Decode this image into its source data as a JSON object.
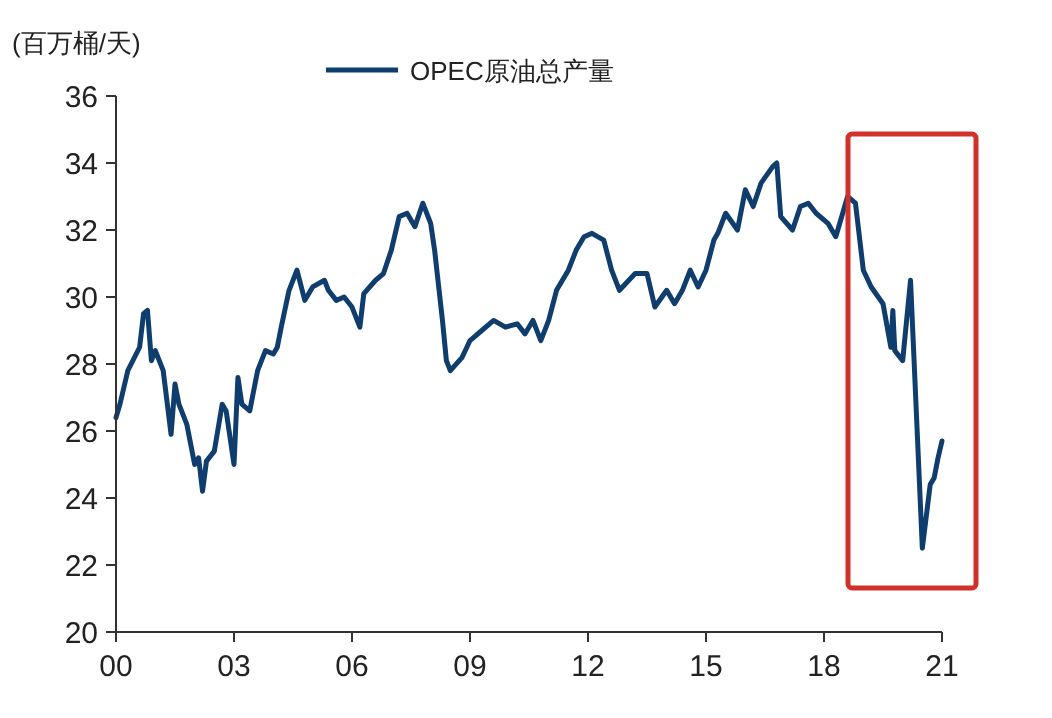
{
  "chart_data": {
    "type": "line",
    "ylabel": "(百万桶/天)",
    "legend": "top",
    "grid": false,
    "xlim": [
      0,
      21
    ],
    "xticks": [
      {
        "value": 0,
        "label": "00"
      },
      {
        "value": 3,
        "label": "03"
      },
      {
        "value": 6,
        "label": "06"
      },
      {
        "value": 9,
        "label": "09"
      },
      {
        "value": 12,
        "label": "12"
      },
      {
        "value": 15,
        "label": "15"
      },
      {
        "value": 18,
        "label": "18"
      },
      {
        "value": 21,
        "label": "21"
      }
    ],
    "ylim": [
      20,
      36
    ],
    "yticks": [
      20,
      22,
      24,
      26,
      28,
      30,
      32,
      34,
      36
    ],
    "series": [
      {
        "name": "OPEC原油总产量",
        "color": "#0f3d6e",
        "x": [
          0,
          0.1,
          0.3,
          0.6,
          0.7,
          0.8,
          0.9,
          1.0,
          1.2,
          1.4,
          1.5,
          1.6,
          1.8,
          2.0,
          2.1,
          2.2,
          2.3,
          2.5,
          2.7,
          2.8,
          3.0,
          3.1,
          3.2,
          3.4,
          3.6,
          3.8,
          4.0,
          4.1,
          4.2,
          4.4,
          4.6,
          4.8,
          5.0,
          5.3,
          5.4,
          5.6,
          5.8,
          6.0,
          6.2,
          6.3,
          6.6,
          6.8,
          7.0,
          7.2,
          7.4,
          7.6,
          7.8,
          8.0,
          8.1,
          8.3,
          8.4,
          8.5,
          8.8,
          9.0,
          9.3,
          9.6,
          9.9,
          10.2,
          10.4,
          10.6,
          10.8,
          11.0,
          11.2,
          11.5,
          11.7,
          11.9,
          12.1,
          12.4,
          12.6,
          12.8,
          13.2,
          13.5,
          13.7,
          14.0,
          14.2,
          14.4,
          14.6,
          14.8,
          15.0,
          15.2,
          15.3,
          15.5,
          15.8,
          16.0,
          16.2,
          16.4,
          16.7,
          16.8,
          16.9,
          17.2,
          17.4,
          17.6,
          17.8,
          18.1,
          18.3,
          18.6,
          18.8,
          19.0,
          19.2,
          19.5,
          19.7,
          19.75,
          19.8,
          20.0,
          20.2,
          20.5,
          20.7,
          20.8,
          20.9,
          21.0
        ],
        "values": [
          26.4,
          26.8,
          27.8,
          28.5,
          29.5,
          29.6,
          28.1,
          28.4,
          27.8,
          25.9,
          27.4,
          26.8,
          26.2,
          25.0,
          25.2,
          24.2,
          25.1,
          25.4,
          26.8,
          26.6,
          25.0,
          27.6,
          26.8,
          26.6,
          27.8,
          28.4,
          28.3,
          28.5,
          29.1,
          30.2,
          30.8,
          29.9,
          30.3,
          30.5,
          30.2,
          29.9,
          30.0,
          29.7,
          29.1,
          30.1,
          30.5,
          30.7,
          31.4,
          32.4,
          32.5,
          32.1,
          32.8,
          32.2,
          31.4,
          29.3,
          28.1,
          27.8,
          28.2,
          28.7,
          29.0,
          29.3,
          29.1,
          29.2,
          28.9,
          29.3,
          28.7,
          29.3,
          30.2,
          30.8,
          31.4,
          31.8,
          31.9,
          31.7,
          30.8,
          30.2,
          30.7,
          30.7,
          29.7,
          30.2,
          29.8,
          30.2,
          30.8,
          30.3,
          30.8,
          31.7,
          31.9,
          32.5,
          32.0,
          33.2,
          32.7,
          33.4,
          33.9,
          34.0,
          32.4,
          32.0,
          32.7,
          32.8,
          32.5,
          32.2,
          31.8,
          33.0,
          32.8,
          30.8,
          30.3,
          29.8,
          28.5,
          29.6,
          28.4,
          28.1,
          30.5,
          22.5,
          24.4,
          24.6,
          25.2,
          25.7
        ]
      }
    ]
  }
}
